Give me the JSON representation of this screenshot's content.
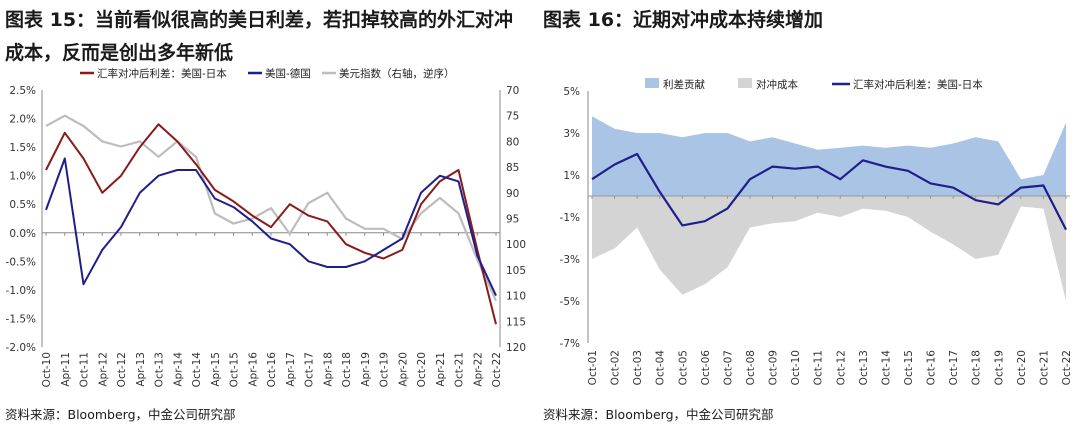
{
  "charts": [
    {
      "title": "图表 15：当前看似很高的美日利差，若扣掉较高的外汇对冲成本，反而是创出多年新低",
      "source": "资料来源：Bloomberg，中金公司研究部",
      "legend": [
        "汇率对冲后利差：美国-日本",
        "美国-德国",
        "美元指数（右轴，逆序）"
      ],
      "colors": {
        "us_jp": "#8B1A1A",
        "us_de": "#1F1F8C",
        "dxy": "#BDBDBD"
      }
    },
    {
      "title": "图表 16：近期对冲成本持续增加",
      "source": "资料来源：Bloomberg，中金公司研究部",
      "legend": [
        "利差贡献",
        "对冲成本",
        "汇率对冲后利差：美国-日本"
      ],
      "colors": {
        "spread": "#A9C4E4",
        "hedge": "#D4D4D4",
        "line": "#1F1F8C"
      }
    }
  ],
  "chart_data": [
    {
      "type": "line",
      "x_ticks": [
        "Oct-10",
        "Apr-11",
        "Oct-11",
        "Apr-12",
        "Oct-12",
        "Apr-13",
        "Oct-13",
        "Apr-14",
        "Oct-14",
        "Apr-15",
        "Oct-15",
        "Apr-16",
        "Oct-16",
        "Apr-17",
        "Oct-17",
        "Apr-18",
        "Oct-18",
        "Apr-19",
        "Oct-19",
        "Apr-20",
        "Oct-20",
        "Apr-21",
        "Oct-21",
        "Apr-22",
        "Oct-22"
      ],
      "y_left": {
        "ticks": [
          "2.5%",
          "2.0%",
          "1.5%",
          "1.0%",
          "0.5%",
          "0.0%",
          "-0.5%",
          "-1.0%",
          "-1.5%",
          "-2.0%"
        ],
        "range": [
          -2.0,
          2.5
        ]
      },
      "y_right": {
        "ticks": [
          "70",
          "75",
          "80",
          "85",
          "90",
          "95",
          "100",
          "105",
          "110",
          "115",
          "120"
        ],
        "range": [
          70,
          120
        ],
        "inverted": true
      },
      "series": [
        {
          "name": "汇率对冲后利差：美国-日本",
          "axis": "left",
          "x": [
            0,
            1,
            2,
            3,
            4,
            5,
            6,
            7,
            8,
            9,
            10,
            11,
            12,
            13,
            14,
            15,
            16,
            17,
            18,
            19,
            20,
            21,
            22,
            23,
            24
          ],
          "values": [
            1.1,
            1.75,
            1.3,
            0.7,
            1.0,
            1.5,
            1.9,
            1.6,
            1.2,
            0.75,
            0.55,
            0.3,
            0.1,
            0.5,
            0.3,
            0.2,
            -0.2,
            -0.35,
            -0.45,
            -0.3,
            0.5,
            0.9,
            1.1,
            -0.3,
            -1.6
          ]
        },
        {
          "name": "美国-德国",
          "axis": "left",
          "x": [
            0,
            1,
            2,
            3,
            4,
            5,
            6,
            7,
            8,
            9,
            10,
            11,
            12,
            13,
            14,
            15,
            16,
            17,
            18,
            19,
            20,
            21,
            22,
            23,
            24
          ],
          "values": [
            0.4,
            1.3,
            -0.9,
            -0.3,
            0.1,
            0.7,
            1.0,
            1.1,
            1.1,
            0.6,
            0.45,
            0.2,
            -0.1,
            -0.2,
            -0.5,
            -0.6,
            -0.6,
            -0.5,
            -0.3,
            -0.1,
            0.7,
            1.0,
            0.9,
            -0.4,
            -1.1
          ]
        },
        {
          "name": "美元指数（右轴，逆序）",
          "axis": "right",
          "x": [
            0,
            1,
            2,
            3,
            4,
            5,
            6,
            7,
            8,
            9,
            10,
            11,
            12,
            13,
            14,
            15,
            16,
            17,
            18,
            19,
            20,
            21,
            22,
            23,
            24
          ],
          "values": [
            77,
            75,
            77,
            80,
            81,
            80,
            83,
            80,
            83,
            94,
            96,
            95,
            93,
            98,
            92,
            90,
            95,
            97,
            97,
            99,
            94,
            91,
            94,
            103,
            111
          ]
        }
      ]
    },
    {
      "type": "area",
      "x_ticks": [
        "Oct-01",
        "Oct-02",
        "Oct-03",
        "Oct-04",
        "Oct-05",
        "Oct-06",
        "Oct-07",
        "Oct-08",
        "Oct-09",
        "Oct-10",
        "Oct-11",
        "Oct-12",
        "Oct-13",
        "Oct-14",
        "Oct-15",
        "Oct-16",
        "Oct-17",
        "Oct-18",
        "Oct-19",
        "Oct-20",
        "Oct-21",
        "Oct-22"
      ],
      "y": {
        "ticks": [
          "5%",
          "3%",
          "1%",
          "-1%",
          "-3%",
          "-5%",
          "-7%"
        ],
        "range": [
          -7,
          5
        ]
      },
      "series": [
        {
          "name": "利差贡献",
          "type": "area",
          "x": [
            0,
            1,
            2,
            3,
            4,
            5,
            6,
            7,
            8,
            9,
            10,
            11,
            12,
            13,
            14,
            15,
            16,
            17,
            18,
            19,
            20,
            21
          ],
          "values": [
            3.8,
            3.2,
            3.0,
            3.0,
            2.8,
            3.0,
            3.0,
            2.6,
            2.8,
            2.5,
            2.2,
            2.3,
            2.4,
            2.3,
            2.4,
            2.3,
            2.5,
            2.8,
            2.6,
            0.8,
            1.0,
            3.5
          ]
        },
        {
          "name": "对冲成本",
          "type": "area",
          "x": [
            0,
            1,
            2,
            3,
            4,
            5,
            6,
            7,
            8,
            9,
            10,
            11,
            12,
            13,
            14,
            15,
            16,
            17,
            18,
            19,
            20,
            21
          ],
          "values": [
            -3.0,
            -2.5,
            -1.5,
            -3.5,
            -4.7,
            -4.2,
            -3.4,
            -1.5,
            -1.3,
            -1.2,
            -0.8,
            -1.0,
            -0.6,
            -0.7,
            -1.0,
            -1.7,
            -2.3,
            -3.0,
            -2.8,
            -0.5,
            -0.6,
            -5.0
          ]
        },
        {
          "name": "汇率对冲后利差：美国-日本",
          "type": "line",
          "x": [
            0,
            1,
            2,
            3,
            4,
            5,
            6,
            7,
            8,
            9,
            10,
            11,
            12,
            13,
            14,
            15,
            16,
            17,
            18,
            19,
            20,
            21
          ],
          "values": [
            0.8,
            1.5,
            2.0,
            0.2,
            -1.4,
            -1.2,
            -0.6,
            0.8,
            1.4,
            1.3,
            1.4,
            0.8,
            1.7,
            1.4,
            1.2,
            0.6,
            0.4,
            -0.2,
            -0.4,
            0.4,
            0.5,
            -1.6
          ]
        }
      ]
    }
  ]
}
